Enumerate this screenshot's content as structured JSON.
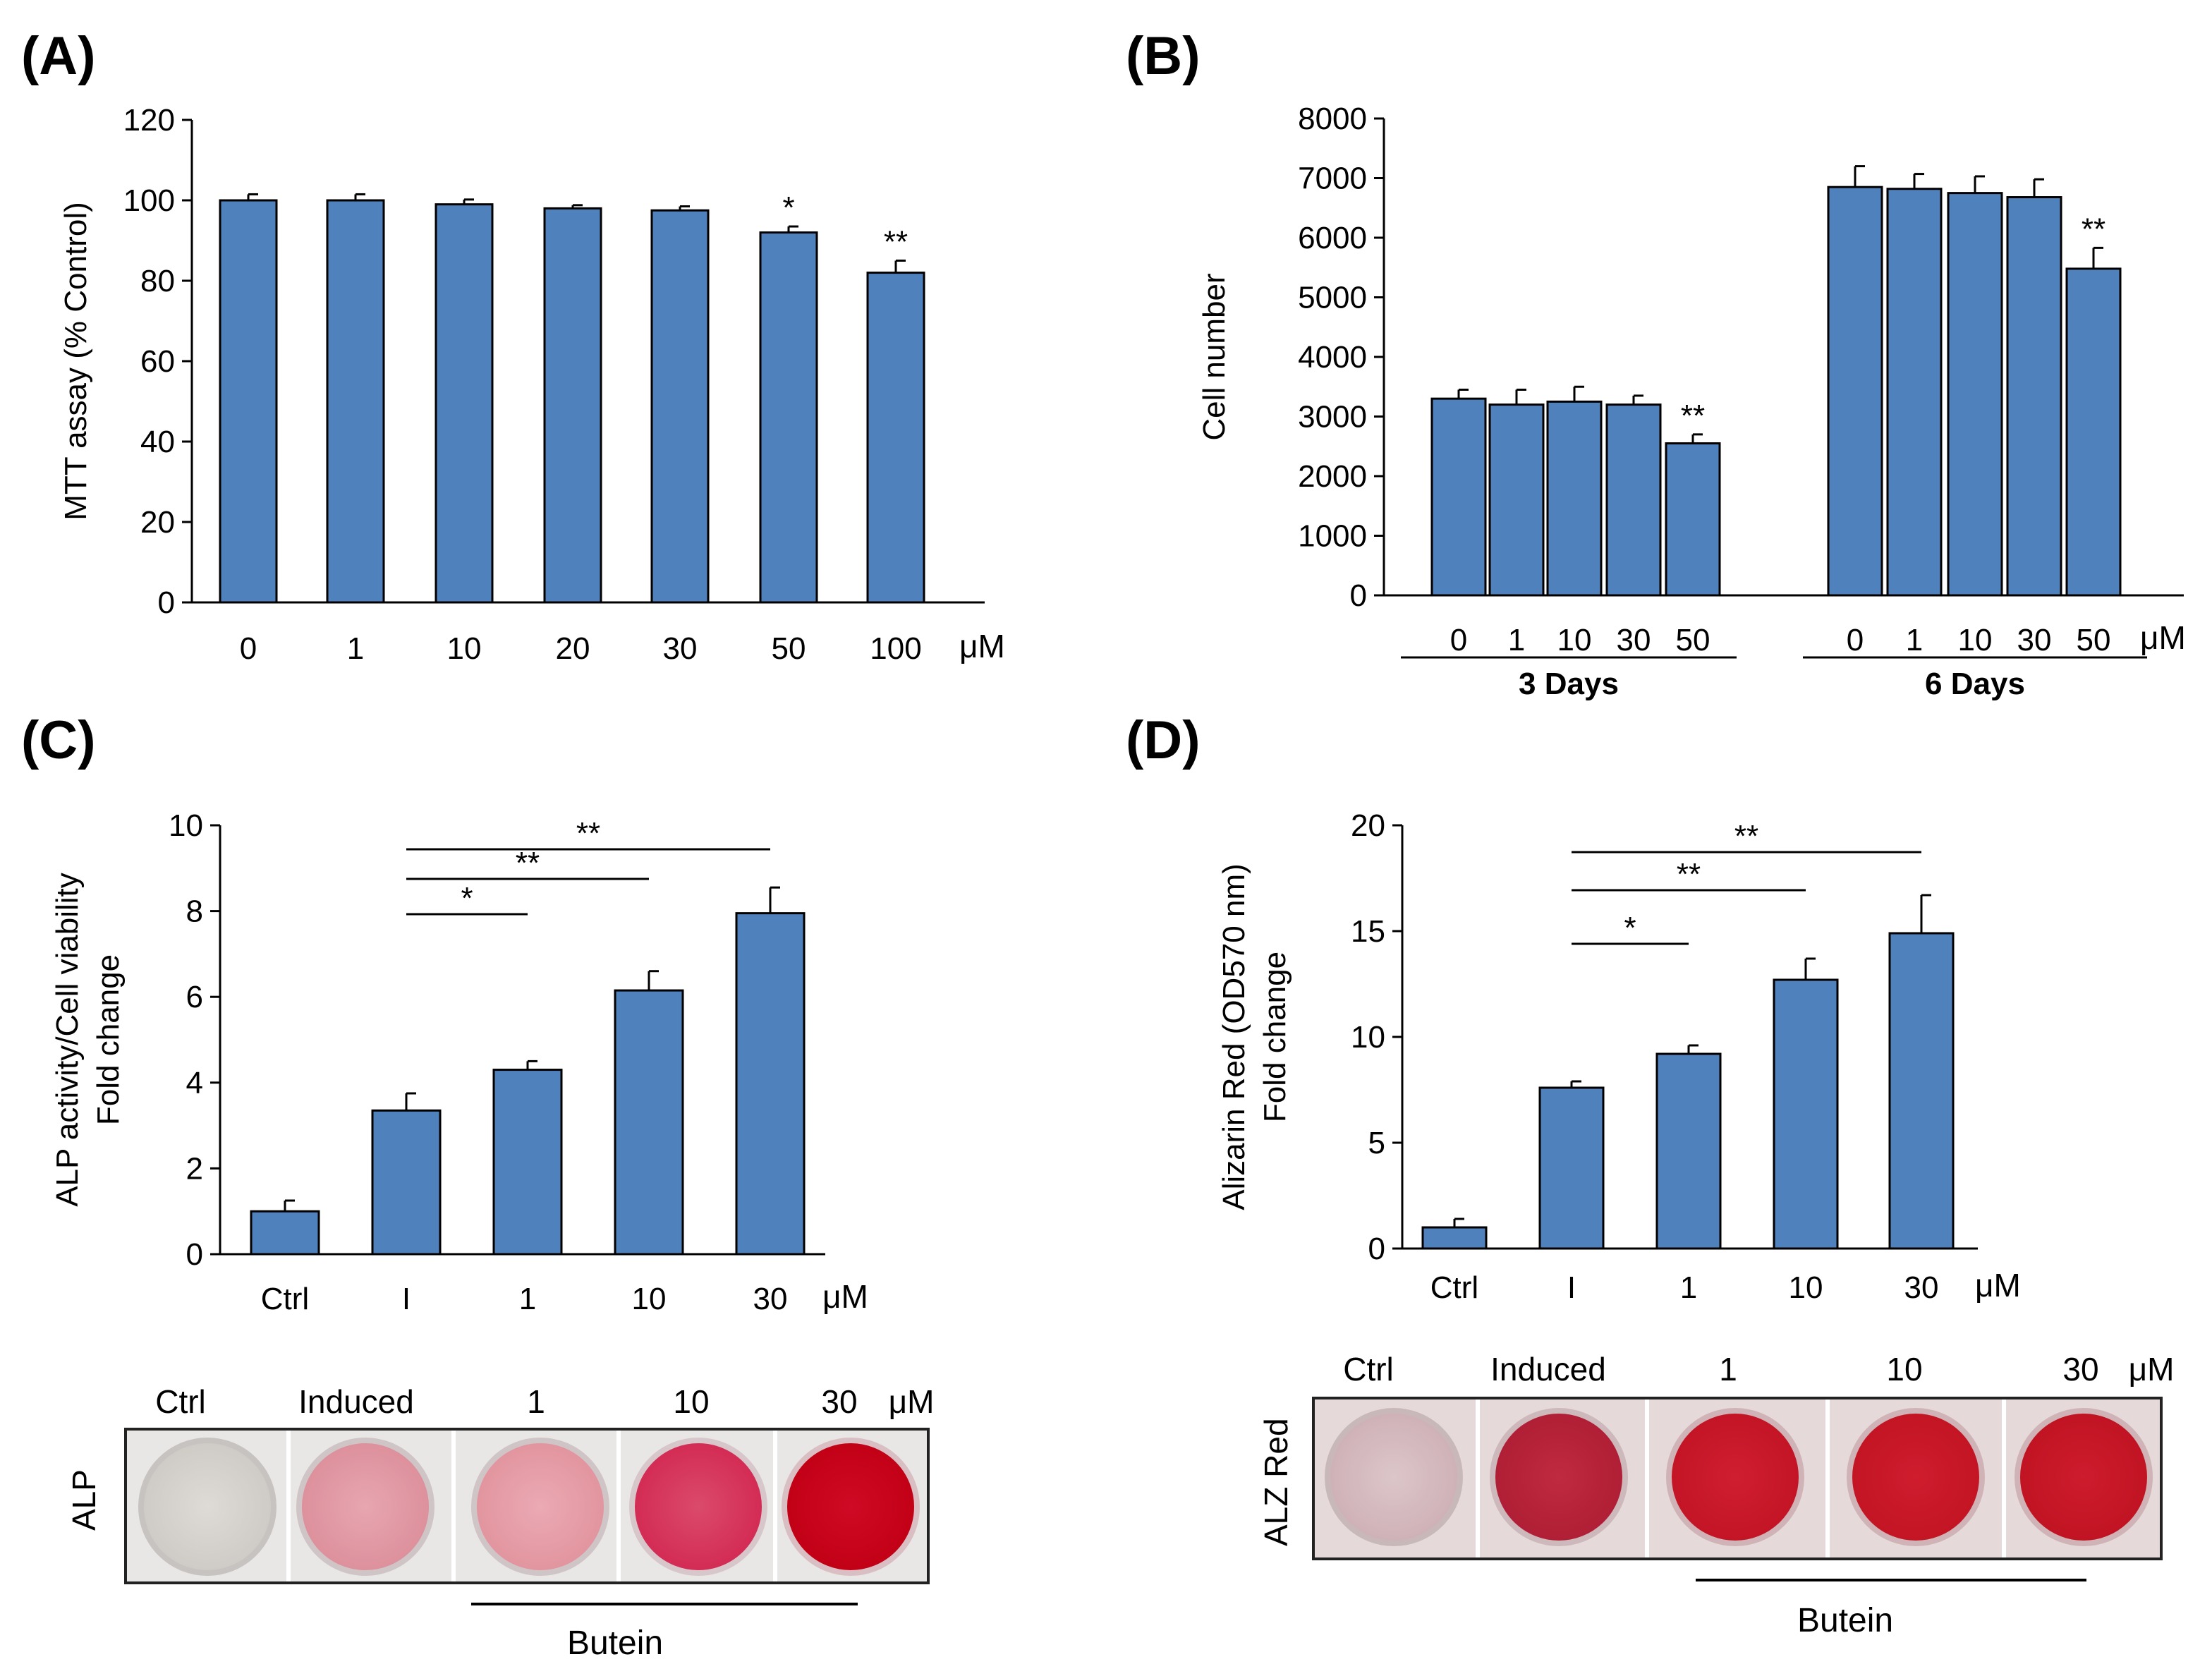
{
  "panels": [
    {
      "id": "A",
      "label": "(A)"
    },
    {
      "id": "B",
      "label": "(B)"
    },
    {
      "id": "C",
      "label": "(C)"
    },
    {
      "id": "D",
      "label": "(D)"
    }
  ],
  "chart_data": [
    {
      "panel": "A",
      "type": "bar",
      "categories": [
        "0",
        "1",
        "10",
        "20",
        "30",
        "50",
        "100"
      ],
      "values": [
        100,
        100,
        99,
        98,
        97.5,
        92,
        82
      ],
      "errors": [
        1.5,
        1.5,
        1.2,
        0.8,
        1.0,
        1.5,
        3
      ],
      "significance": [
        "",
        "",
        "",
        "",
        "",
        "*",
        "**"
      ],
      "unit": "μM",
      "ylabel": "MTT assay (% Control)",
      "ylim": [
        0,
        120
      ],
      "yticks": [
        0,
        20,
        40,
        60,
        80,
        100,
        120
      ],
      "color": "#4f81bd"
    },
    {
      "panel": "B",
      "type": "bar",
      "groups": [
        {
          "name": "3 Days",
          "categories": [
            "0",
            "1",
            "10",
            "30",
            "50"
          ],
          "values": [
            3300,
            3200,
            3250,
            3200,
            2550
          ],
          "errors": [
            150,
            250,
            250,
            150,
            150
          ],
          "significance": [
            "",
            "",
            "",
            "",
            "**"
          ]
        },
        {
          "name": "6 Days",
          "categories": [
            "0",
            "1",
            "10",
            "30",
            "50"
          ],
          "values": [
            6850,
            6820,
            6750,
            6680,
            5480
          ],
          "errors": [
            350,
            250,
            280,
            300,
            350
          ],
          "significance": [
            "",
            "",
            "",
            "",
            "**"
          ]
        }
      ],
      "unit": "μM",
      "ylabel": "Cell number",
      "ylim": [
        0,
        8000
      ],
      "yticks": [
        0,
        1000,
        2000,
        3000,
        4000,
        5000,
        6000,
        7000,
        8000
      ],
      "color": "#4f81bd"
    },
    {
      "panel": "C",
      "type": "bar",
      "categories": [
        "Ctrl",
        "I",
        "1",
        "10",
        "30"
      ],
      "values": [
        1.0,
        3.35,
        4.3,
        6.15,
        7.95
      ],
      "errors": [
        0.25,
        0.4,
        0.2,
        0.45,
        0.6
      ],
      "brackets": [
        {
          "from": 1,
          "to": 2,
          "label": "*"
        },
        {
          "from": 1,
          "to": 3,
          "label": "**"
        },
        {
          "from": 1,
          "to": 4,
          "label": "**"
        }
      ],
      "unit": "μM",
      "ylabel": [
        "ALP activity/Cell viability",
        "Fold change"
      ],
      "ylim": [
        0,
        10
      ],
      "yticks": [
        0,
        2,
        4,
        6,
        8,
        10
      ],
      "color": "#4f81bd"
    },
    {
      "panel": "D",
      "type": "bar",
      "categories": [
        "Ctrl",
        "I",
        "1",
        "10",
        "30"
      ],
      "values": [
        1.0,
        7.6,
        9.2,
        12.7,
        14.9
      ],
      "errors": [
        0.4,
        0.3,
        0.4,
        1.0,
        1.8
      ],
      "brackets": [
        {
          "from": 1,
          "to": 2,
          "label": "*"
        },
        {
          "from": 1,
          "to": 3,
          "label": "**"
        },
        {
          "from": 1,
          "to": 4,
          "label": "**"
        }
      ],
      "unit": "μM",
      "ylabel": [
        "Alizarin Red (OD570 nm)",
        "Fold change"
      ],
      "ylim": [
        0,
        20
      ],
      "yticks": [
        0,
        5,
        10,
        15,
        20
      ],
      "color": "#4f81bd"
    }
  ],
  "images": {
    "C": {
      "row_label": "ALP",
      "wells": [
        "Ctrl",
        "Induced",
        "1",
        "10",
        "30"
      ],
      "unit": "μM",
      "treatment": "Butein",
      "well_colors": [
        "#d9d6d2",
        "#e29aa5",
        "#e6a2ad",
        "#d8375d",
        "#c80020"
      ]
    },
    "D": {
      "row_label": "ALZ Red",
      "wells": [
        "Ctrl",
        "Induced",
        "1",
        "10",
        "30"
      ],
      "unit": "μM",
      "treatment": "Butein",
      "well_colors": [
        "#d8c2c6",
        "#b7243a",
        "#c8152a",
        "#c61525",
        "#c41524"
      ]
    }
  }
}
